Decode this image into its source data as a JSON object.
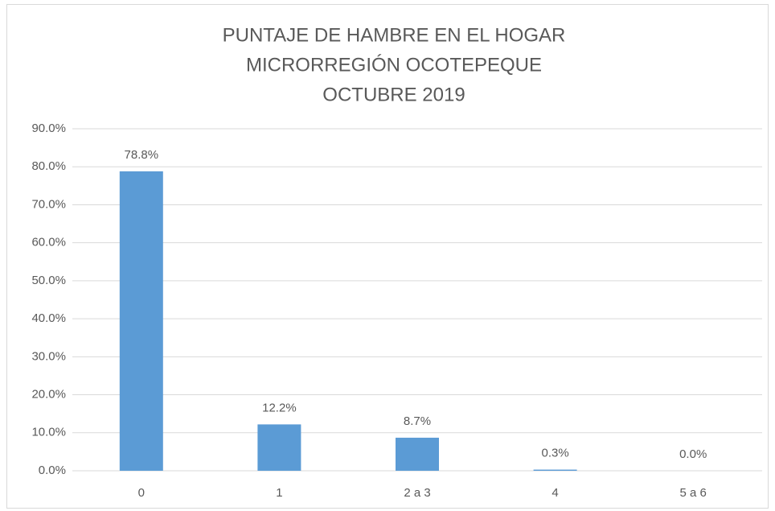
{
  "chart_data": {
    "type": "bar",
    "title": [
      "PUNTAJE DE HAMBRE EN EL HOGAR",
      "MICRORREGIÓN OCOTEPEQUE",
      "OCTUBRE 2019"
    ],
    "categories": [
      "0",
      "1",
      "2 a 3",
      "4",
      "5 a 6"
    ],
    "values": [
      78.8,
      12.2,
      8.7,
      0.3,
      0.0
    ],
    "value_labels": [
      "78.8%",
      "12.2%",
      "8.7%",
      "0.3%",
      "0.0%"
    ],
    "color": "#5b9bd5",
    "ylim": [
      0,
      90
    ],
    "yticks": [
      {
        "value": 0,
        "label": "0.0%"
      },
      {
        "value": 10,
        "label": "10.0%"
      },
      {
        "value": 20,
        "label": "20.0%"
      },
      {
        "value": 30,
        "label": "30.0%"
      },
      {
        "value": 40,
        "label": "40.0%"
      },
      {
        "value": 50,
        "label": "50.0%"
      },
      {
        "value": 60,
        "label": "60.0%"
      },
      {
        "value": 70,
        "label": "70.0%"
      },
      {
        "value": 80,
        "label": "80.0%"
      },
      {
        "value": 90,
        "label": "90.0%"
      }
    ],
    "grid": true
  }
}
